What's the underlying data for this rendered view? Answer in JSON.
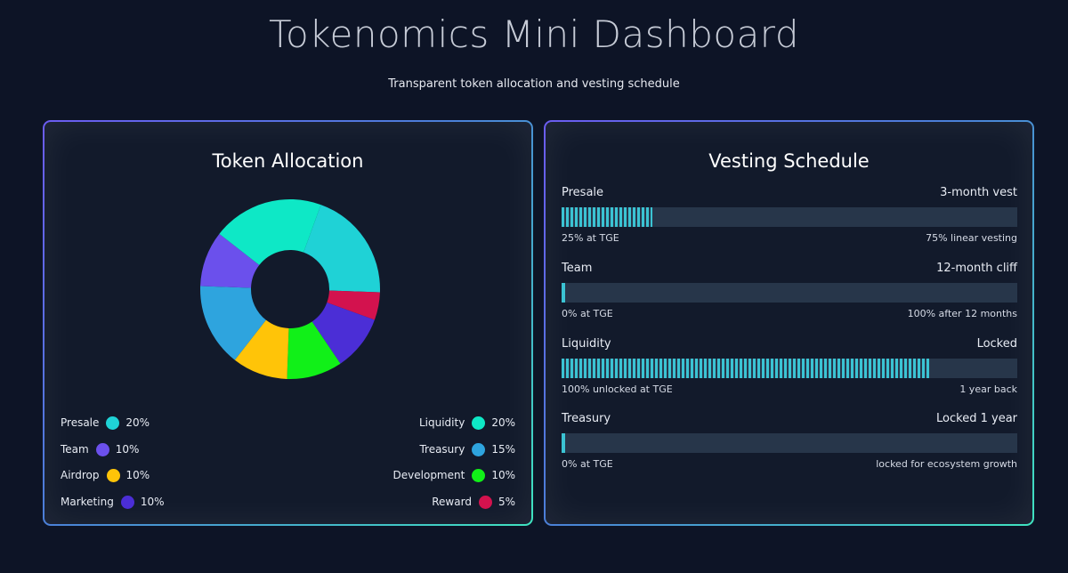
{
  "header": {
    "title": "Tokenomics Mini Dashboard",
    "subtitle": "Transparent token allocation and vesting schedule"
  },
  "allocation": {
    "title": "Token Allocation",
    "legend_left": [
      {
        "label": "Presale",
        "value": "20%",
        "color": "#1fd2d6"
      },
      {
        "label": "Team",
        "value": "10%",
        "color": "#6b50ec"
      },
      {
        "label": "Airdrop",
        "value": "10%",
        "color": "#ffc408"
      },
      {
        "label": "Marketing",
        "value": "10%",
        "color": "#4b2ed6"
      }
    ],
    "legend_right": [
      {
        "label": "Liquidity",
        "value": "20%",
        "color": "#0ee8c6"
      },
      {
        "label": "Treasury",
        "value": "15%",
        "color": "#2ea4de"
      },
      {
        "label": "Development",
        "value": "10%",
        "color": "#11f018"
      },
      {
        "label": "Reward",
        "value": "5%",
        "color": "#d3124e"
      }
    ]
  },
  "chart_data": {
    "type": "pie",
    "donut": true,
    "title": "Token Allocation",
    "categories": [
      "Presale",
      "Reward",
      "Marketing",
      "Development",
      "Airdrop",
      "Treasury",
      "Team",
      "Liquidity"
    ],
    "values": [
      20,
      5,
      10,
      10,
      10,
      15,
      10,
      20
    ],
    "colors": [
      "#1fd2d6",
      "#d3124e",
      "#4b2ed6",
      "#11f018",
      "#ffc408",
      "#2ea4de",
      "#6b50ec",
      "#0ee8c6"
    ],
    "start_angle_deg": 20,
    "legend": "bottom"
  },
  "vesting": {
    "title": "Vesting Schedule",
    "rows": [
      {
        "name": "Presale",
        "term": "3-month vest",
        "left_note": "25% at TGE",
        "right_note": "75% linear vesting",
        "progress": 0.2
      },
      {
        "name": "Team",
        "term": "12-month cliff",
        "left_note": "0% at TGE",
        "right_note": "100% after 12 months",
        "progress": 0.0
      },
      {
        "name": "Liquidity",
        "term": "Locked",
        "left_note": "100% unlocked at TGE",
        "right_note": "1 year back",
        "progress": 0.81
      },
      {
        "name": "Treasury",
        "term": "Locked 1 year",
        "left_note": "0% at TGE",
        "right_note": "locked for ecosystem growth",
        "progress": 0.0
      }
    ]
  }
}
